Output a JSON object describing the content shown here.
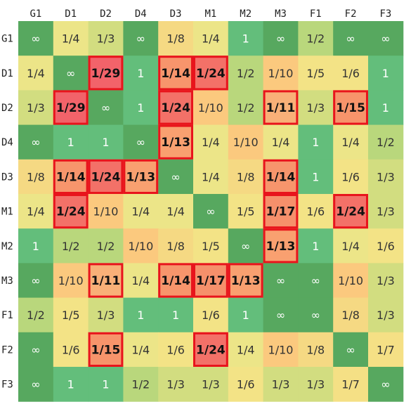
{
  "chart_data": {
    "type": "heatmap",
    "title": "",
    "xlabel": "",
    "ylabel": "",
    "columns": [
      "G1",
      "D1",
      "D2",
      "D4",
      "D3",
      "M1",
      "M2",
      "M3",
      "F1",
      "F2",
      "F3"
    ],
    "rows": [
      "G1",
      "D1",
      "D2",
      "D4",
      "D3",
      "M1",
      "M2",
      "M3",
      "F1",
      "F2",
      "F3"
    ],
    "cells": [
      [
        "∞",
        "1/4",
        "1/3",
        "∞",
        "1/8",
        "1/4",
        "1",
        "∞",
        "1/2",
        "∞",
        "∞"
      ],
      [
        "1/4",
        "∞",
        "1/29",
        "1",
        "1/14",
        "1/24",
        "1/2",
        "1/10",
        "1/5",
        "1/6",
        "1"
      ],
      [
        "1/3",
        "1/29",
        "∞",
        "1",
        "1/24",
        "1/10",
        "1/2",
        "1/11",
        "1/3",
        "1/15",
        "1"
      ],
      [
        "∞",
        "1",
        "1",
        "∞",
        "1/13",
        "1/4",
        "1/10",
        "1/4",
        "1",
        "1/4",
        "1/2"
      ],
      [
        "1/8",
        "1/14",
        "1/24",
        "1/13",
        "∞",
        "1/4",
        "1/8",
        "1/14",
        "1",
        "1/6",
        "1/3"
      ],
      [
        "1/4",
        "1/24",
        "1/10",
        "1/4",
        "1/4",
        "∞",
        "1/5",
        "1/17",
        "1/6",
        "1/24",
        "1/3"
      ],
      [
        "1",
        "1/2",
        "1/2",
        "1/10",
        "1/8",
        "1/5",
        "∞",
        "1/13",
        "1",
        "1/4",
        "1/6"
      ],
      [
        "∞",
        "1/10",
        "1/11",
        "1/4",
        "1/14",
        "1/17",
        "1/13",
        "∞",
        "∞",
        "1/10",
        "1/3"
      ],
      [
        "1/2",
        "1/5",
        "1/3",
        "1",
        "1",
        "1/6",
        "1",
        "∞",
        "∞",
        "1/8",
        "1/3"
      ],
      [
        "∞",
        "1/6",
        "1/15",
        "1/4",
        "1/6",
        "1/24",
        "1/4",
        "1/10",
        "1/8",
        "∞",
        "1/7"
      ],
      [
        "∞",
        "1",
        "1",
        "1/2",
        "1/3",
        "1/3",
        "1/6",
        "1/3",
        "1/3",
        "1/7",
        "∞"
      ]
    ],
    "highlight_threshold": "1/11 or smaller (bold values, red outline)",
    "highlight_color": "#e8141c",
    "grid": false,
    "legend": "none"
  }
}
